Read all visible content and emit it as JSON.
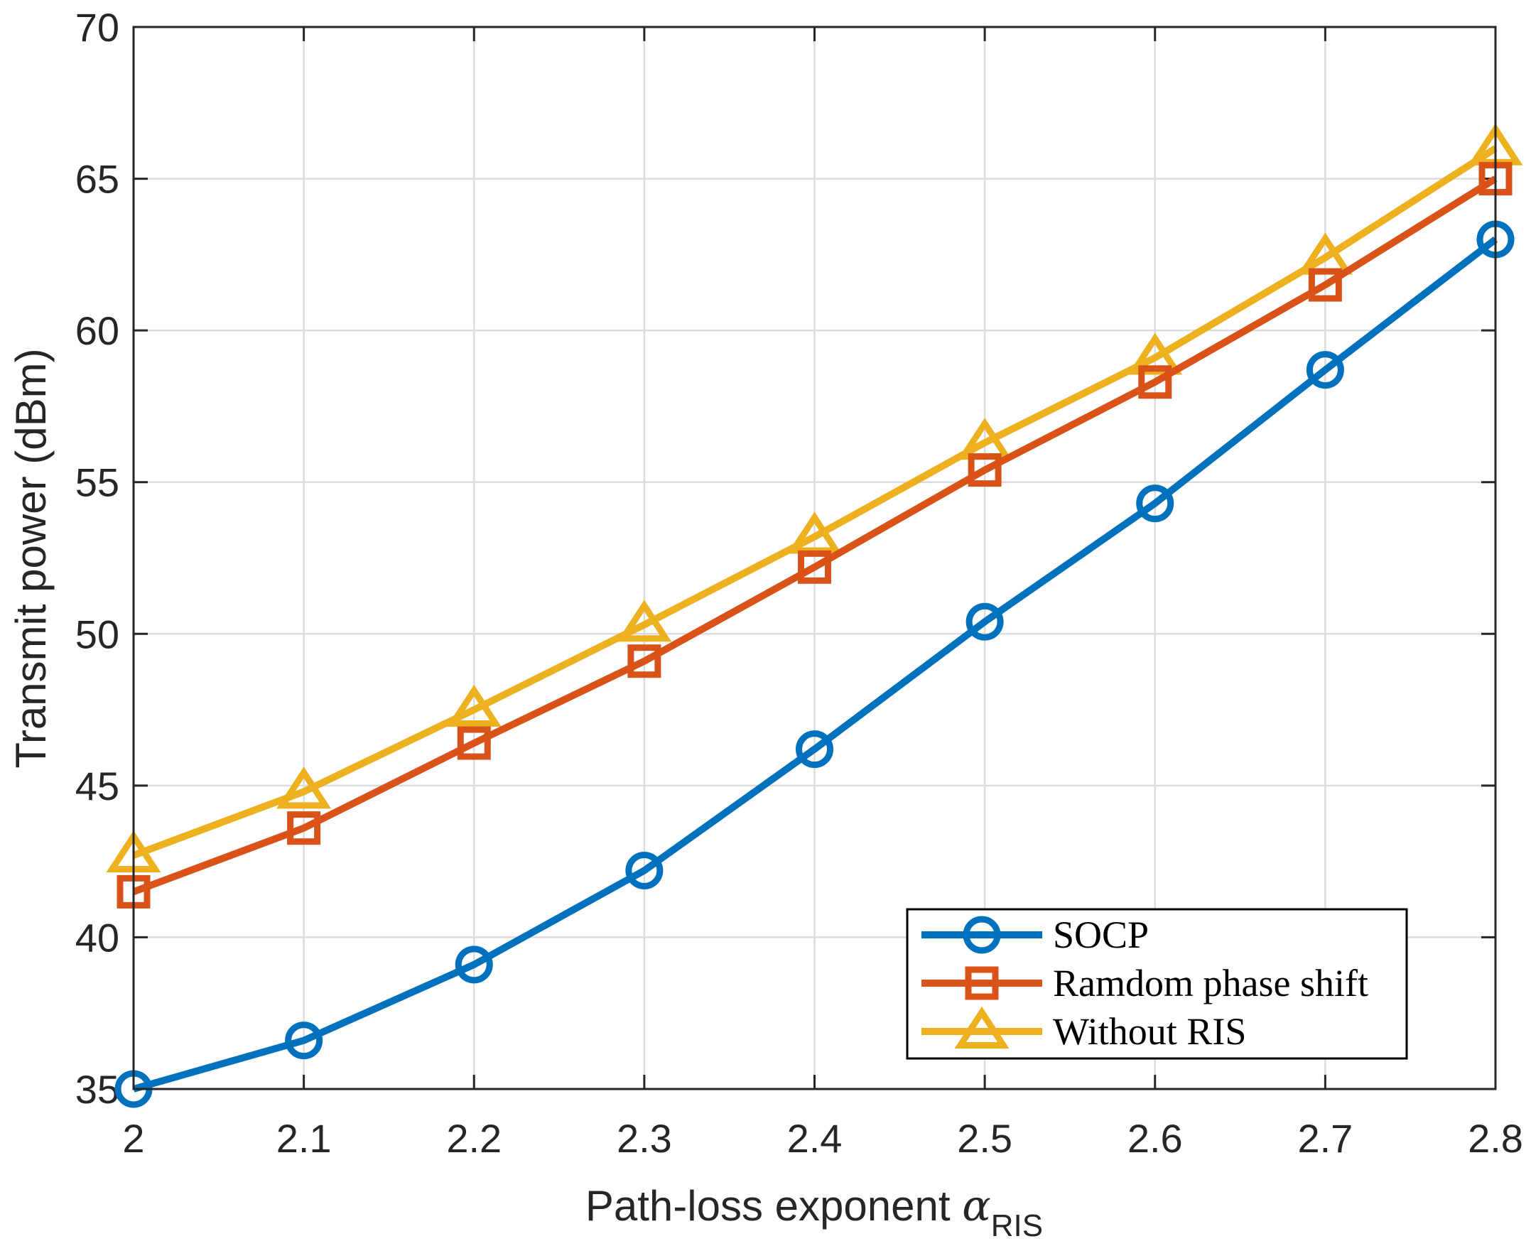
{
  "chart_data": {
    "type": "line",
    "x": [
      2.0,
      2.1,
      2.2,
      2.3,
      2.4,
      2.5,
      2.6,
      2.7,
      2.8
    ],
    "x_ticks": [
      "2",
      "2.1",
      "2.2",
      "2.3",
      "2.4",
      "2.5",
      "2.6",
      "2.7",
      "2.8"
    ],
    "y_ticks": [
      "35",
      "40",
      "45",
      "50",
      "55",
      "60",
      "65",
      "70"
    ],
    "xlim": [
      2.0,
      2.8
    ],
    "ylim": [
      35,
      70
    ],
    "xlabel": "Path-loss exponent ",
    "xlabel_symbol": "α",
    "xlabel_subscript": "RIS",
    "ylabel": "Transmit power (dBm)",
    "grid": true,
    "legend_position": "bottom-right",
    "series": [
      {
        "name": "SOCP",
        "marker": "circle",
        "color": "#0072BD",
        "values": [
          35.0,
          36.6,
          39.1,
          42.2,
          46.2,
          50.4,
          54.3,
          58.7,
          63.0
        ]
      },
      {
        "name": "Ramdom phase shift",
        "marker": "square",
        "color": "#D95319",
        "values": [
          41.5,
          43.6,
          46.4,
          49.1,
          52.2,
          55.4,
          58.3,
          61.5,
          65.0
        ]
      },
      {
        "name": "Without RIS",
        "marker": "triangle",
        "color": "#EDB120",
        "values": [
          42.7,
          44.8,
          47.5,
          50.3,
          53.2,
          56.3,
          59.1,
          62.4,
          66.0
        ]
      }
    ]
  }
}
